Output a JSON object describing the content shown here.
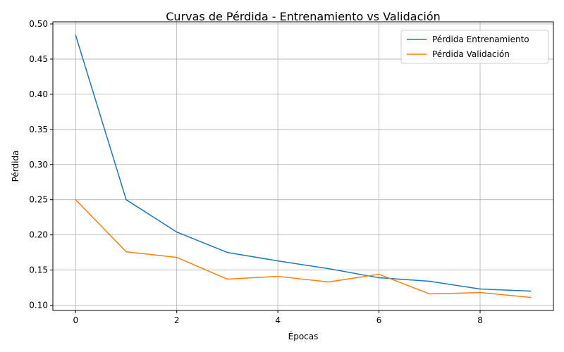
{
  "chart_data": {
    "type": "line",
    "title": "Curvas de Pérdida - Entrenamiento vs Validación",
    "xlabel": "Épocas",
    "ylabel": "Pérdida",
    "x": [
      0,
      1,
      2,
      3,
      4,
      5,
      6,
      7,
      8,
      9
    ],
    "xlim": [
      -0.45,
      9.45
    ],
    "ylim": [
      0.0925,
      0.503
    ],
    "xticks": [
      0,
      2,
      4,
      6,
      8
    ],
    "xtick_labels": [
      "0",
      "2",
      "4",
      "6",
      "8"
    ],
    "yticks": [
      0.1,
      0.15,
      0.2,
      0.25,
      0.3,
      0.35,
      0.4,
      0.45,
      0.5
    ],
    "ytick_labels": [
      "0.10",
      "0.15",
      "0.20",
      "0.25",
      "0.30",
      "0.35",
      "0.40",
      "0.45",
      "0.50"
    ],
    "grid": true,
    "legend_position": "top-right",
    "series": [
      {
        "name": "Pérdida Entrenamiento",
        "color": "#1f77b4",
        "values": [
          0.484,
          0.25,
          0.204,
          0.175,
          0.163,
          0.152,
          0.139,
          0.134,
          0.123,
          0.12
        ]
      },
      {
        "name": "Pérdida Validación",
        "color": "#ff7f0e",
        "values": [
          0.25,
          0.176,
          0.168,
          0.137,
          0.141,
          0.133,
          0.144,
          0.116,
          0.118,
          0.111
        ]
      }
    ]
  }
}
